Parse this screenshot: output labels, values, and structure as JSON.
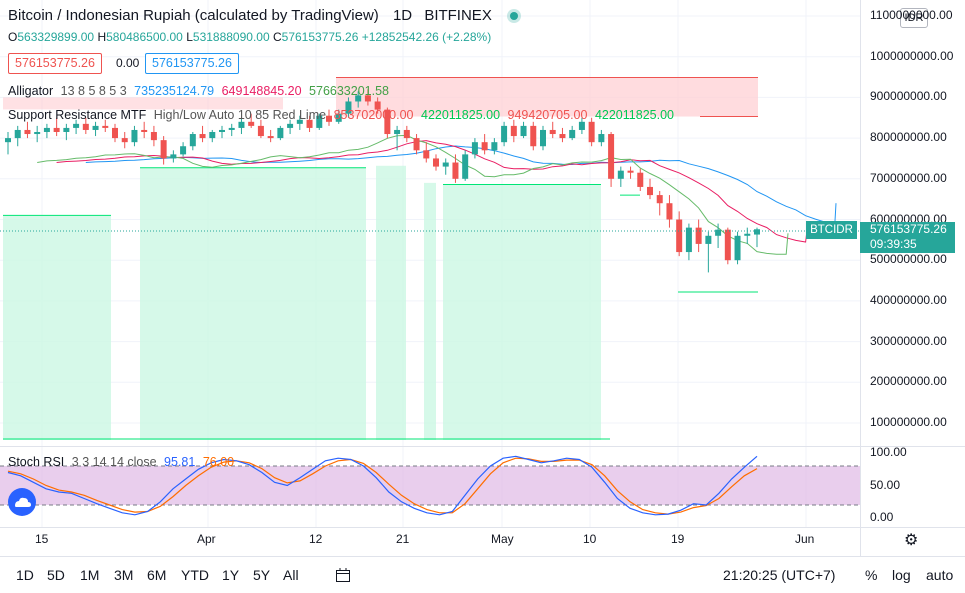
{
  "header": {
    "symbol_title": "Bitcoin / Indonesian Rupiah (calculated by TradingView)",
    "interval": "1D",
    "exchange": "BITFINEX",
    "ohlc": {
      "o_label": "O",
      "o": "563329899.00",
      "h_label": "H",
      "h": "580486500.00",
      "l_label": "L",
      "l": "531888090.00",
      "c_label": "C",
      "c": "576153775.26",
      "change": "+12852542.26 (+2.28%)"
    },
    "sell_price": "576153775.26",
    "spread": "0.00",
    "buy_price": "576153775.26"
  },
  "indicators": {
    "alligator": {
      "name": "Alligator",
      "params": "13 8 5 8 5 3",
      "jaw": "735235124.79",
      "teeth": "649148845.20",
      "lips": "576633201.58",
      "colors": {
        "jaw": "#2196f3",
        "teeth": "#e91e63",
        "lips": "#66bb6a"
      }
    },
    "sr": {
      "name": "Support Resistance MTF",
      "params": "High/Low Auto 10 85 Red Lime",
      "v1": "853702000.00",
      "v2": "422011825.00",
      "v3": "949420705.00",
      "v4": "422011825.00",
      "colors": {
        "res": "#ef5350",
        "sup": "#00e676"
      }
    },
    "stoch": {
      "name": "Stoch RSI",
      "params": "3 3 14 14 close",
      "k": "95.81",
      "d": "76.00",
      "colors": {
        "k": "#2962ff",
        "d": "#ff6d00"
      }
    }
  },
  "currency_button": "IDR",
  "current_symbol_tag": "BTCIDR",
  "current_price_tag": "576153775.26",
  "countdown": "09:39:35",
  "price_axis": [
    "1100000000.00",
    "1000000000.00",
    "900000000.00",
    "800000000.00",
    "700000000.00",
    "600000000.00",
    "500000000.00",
    "400000000.00",
    "300000000.00",
    "200000000.00",
    "100000000.00"
  ],
  "stoch_axis": [
    "100.00",
    "50.00",
    "0.00"
  ],
  "time_axis": [
    "15",
    "Apr",
    "12",
    "21",
    "May",
    "10",
    "19",
    "Jun"
  ],
  "bottom_bar": {
    "ranges": [
      "1D",
      "5D",
      "1M",
      "3M",
      "6M",
      "YTD",
      "1Y",
      "5Y",
      "All"
    ],
    "time": "21:20:25 (UTC+7)",
    "percent": "%",
    "log": "log",
    "auto": "auto"
  },
  "chart_data": {
    "type": "candlestick",
    "price_ylim": [
      0,
      1100000000
    ],
    "stoch_ylim": [
      0,
      100
    ],
    "candles": [
      [
        790,
        815,
        760,
        800
      ],
      [
        800,
        830,
        780,
        820
      ],
      [
        820,
        840,
        800,
        810
      ],
      [
        810,
        830,
        790,
        815
      ],
      [
        815,
        835,
        800,
        825
      ],
      [
        825,
        850,
        805,
        815
      ],
      [
        815,
        835,
        795,
        825
      ],
      [
        825,
        845,
        810,
        835
      ],
      [
        835,
        850,
        810,
        820
      ],
      [
        820,
        840,
        805,
        830
      ],
      [
        830,
        845,
        815,
        825
      ],
      [
        825,
        835,
        790,
        800
      ],
      [
        800,
        815,
        775,
        790
      ],
      [
        790,
        830,
        780,
        820
      ],
      [
        820,
        840,
        800,
        815
      ],
      [
        815,
        830,
        780,
        795
      ],
      [
        795,
        805,
        735,
        750
      ],
      [
        750,
        770,
        740,
        760
      ],
      [
        760,
        790,
        755,
        780
      ],
      [
        780,
        815,
        770,
        810
      ],
      [
        810,
        830,
        790,
        800
      ],
      [
        800,
        820,
        790,
        815
      ],
      [
        815,
        830,
        800,
        820
      ],
      [
        820,
        835,
        805,
        825
      ],
      [
        825,
        850,
        810,
        840
      ],
      [
        840,
        860,
        825,
        830
      ],
      [
        830,
        845,
        800,
        805
      ],
      [
        805,
        820,
        790,
        800
      ],
      [
        800,
        830,
        795,
        825
      ],
      [
        825,
        845,
        810,
        835
      ],
      [
        835,
        855,
        820,
        845
      ],
      [
        845,
        855,
        815,
        825
      ],
      [
        825,
        860,
        820,
        855
      ],
      [
        855,
        870,
        830,
        840
      ],
      [
        840,
        870,
        835,
        860
      ],
      [
        860,
        900,
        850,
        890
      ],
      [
        890,
        915,
        875,
        905
      ],
      [
        905,
        920,
        880,
        890
      ],
      [
        890,
        900,
        860,
        870
      ],
      [
        870,
        875,
        800,
        810
      ],
      [
        810,
        830,
        770,
        820
      ],
      [
        820,
        830,
        790,
        800
      ],
      [
        800,
        810,
        760,
        770
      ],
      [
        770,
        790,
        740,
        750
      ],
      [
        750,
        760,
        720,
        730
      ],
      [
        730,
        750,
        710,
        740
      ],
      [
        740,
        760,
        690,
        700
      ],
      [
        700,
        770,
        695,
        760
      ],
      [
        760,
        800,
        750,
        790
      ],
      [
        790,
        810,
        760,
        770
      ],
      [
        770,
        800,
        760,
        790
      ],
      [
        790,
        840,
        780,
        830
      ],
      [
        830,
        845,
        790,
        805
      ],
      [
        805,
        840,
        800,
        830
      ],
      [
        830,
        840,
        770,
        780
      ],
      [
        780,
        830,
        770,
        820
      ],
      [
        820,
        840,
        800,
        810
      ],
      [
        810,
        825,
        790,
        800
      ],
      [
        800,
        830,
        795,
        820
      ],
      [
        820,
        850,
        810,
        840
      ],
      [
        840,
        850,
        780,
        790
      ],
      [
        790,
        820,
        780,
        810
      ],
      [
        810,
        815,
        680,
        700
      ],
      [
        700,
        730,
        680,
        720
      ],
      [
        720,
        730,
        700,
        715
      ],
      [
        715,
        725,
        670,
        680
      ],
      [
        680,
        700,
        650,
        660
      ],
      [
        660,
        670,
        610,
        640
      ],
      [
        640,
        660,
        580,
        600
      ],
      [
        600,
        620,
        510,
        520
      ],
      [
        520,
        590,
        500,
        580
      ],
      [
        580,
        600,
        520,
        540
      ],
      [
        540,
        570,
        470,
        560
      ],
      [
        560,
        590,
        530,
        575
      ],
      [
        575,
        580,
        490,
        500
      ],
      [
        500,
        570,
        490,
        560
      ],
      [
        560,
        580,
        540,
        565
      ],
      [
        563,
        580,
        532,
        576
      ]
    ],
    "stoch_k": [
      70,
      65,
      55,
      45,
      40,
      38,
      30,
      22,
      15,
      8,
      5,
      10,
      25,
      45,
      60,
      75,
      85,
      90,
      88,
      82,
      70,
      55,
      50,
      62,
      75,
      88,
      92,
      90,
      80,
      62,
      40,
      25,
      15,
      8,
      5,
      10,
      35,
      60,
      80,
      92,
      95,
      90,
      85,
      88,
      92,
      90,
      78,
      55,
      30,
      15,
      8,
      5,
      6,
      12,
      22,
      20,
      38,
      60,
      78,
      95
    ],
    "stoch_d": [
      72,
      68,
      60,
      50,
      43,
      40,
      35,
      27,
      20,
      13,
      9,
      10,
      18,
      33,
      50,
      65,
      78,
      86,
      88,
      85,
      76,
      62,
      54,
      57,
      68,
      80,
      88,
      90,
      84,
      70,
      52,
      35,
      22,
      13,
      8,
      8,
      22,
      45,
      68,
      85,
      92,
      91,
      87,
      87,
      89,
      89,
      82,
      65,
      42,
      25,
      13,
      8,
      6,
      9,
      16,
      19,
      30,
      48,
      65,
      76
    ]
  }
}
